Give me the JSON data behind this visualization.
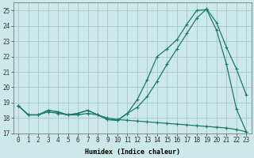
{
  "xlabel": "Humidex (Indice chaleur)",
  "line1_x": [
    0,
    1,
    2,
    3,
    4,
    5,
    6,
    7,
    8,
    9,
    10,
    11,
    12,
    13,
    14,
    15,
    16,
    17,
    18,
    19,
    20,
    21,
    22,
    23
  ],
  "line1_y": [
    18.8,
    18.2,
    18.2,
    18.5,
    18.4,
    18.2,
    18.3,
    18.5,
    18.2,
    17.9,
    17.85,
    18.3,
    19.2,
    20.5,
    22.0,
    22.5,
    23.1,
    24.1,
    25.0,
    25.05,
    23.7,
    21.5,
    18.6,
    17.1
  ],
  "line2_x": [
    0,
    1,
    2,
    3,
    4,
    5,
    6,
    7,
    8,
    9,
    10,
    11,
    12,
    13,
    14,
    15,
    16,
    17,
    18,
    19,
    20,
    21,
    22,
    23
  ],
  "line2_y": [
    18.8,
    18.2,
    18.2,
    18.5,
    18.4,
    18.2,
    18.3,
    18.5,
    18.2,
    17.9,
    17.85,
    18.3,
    18.7,
    19.4,
    20.4,
    21.5,
    22.5,
    23.5,
    24.5,
    25.1,
    24.2,
    22.6,
    21.2,
    19.5
  ],
  "line3_x": [
    0,
    1,
    2,
    3,
    4,
    5,
    6,
    7,
    8,
    9,
    10,
    11,
    12,
    13,
    14,
    15,
    16,
    17,
    18,
    19,
    20,
    21,
    22,
    23
  ],
  "line3_y": [
    18.8,
    18.2,
    18.2,
    18.4,
    18.3,
    18.2,
    18.2,
    18.3,
    18.2,
    18.0,
    17.9,
    17.85,
    17.8,
    17.75,
    17.7,
    17.65,
    17.6,
    17.55,
    17.5,
    17.45,
    17.4,
    17.35,
    17.25,
    17.1
  ],
  "line_color": "#1a7a6e",
  "bg_color": "#cce8e8",
  "grid_color": "#aacccc",
  "xlim": [
    -0.5,
    23.5
  ],
  "ylim": [
    17,
    25.5
  ],
  "yticks": [
    17,
    18,
    19,
    20,
    21,
    22,
    23,
    24,
    25
  ],
  "xticks": [
    0,
    1,
    2,
    3,
    4,
    5,
    6,
    7,
    8,
    9,
    10,
    11,
    12,
    13,
    14,
    15,
    16,
    17,
    18,
    19,
    20,
    21,
    22,
    23
  ],
  "xlabel_fontsize": 6.0,
  "tick_fontsize": 5.5
}
